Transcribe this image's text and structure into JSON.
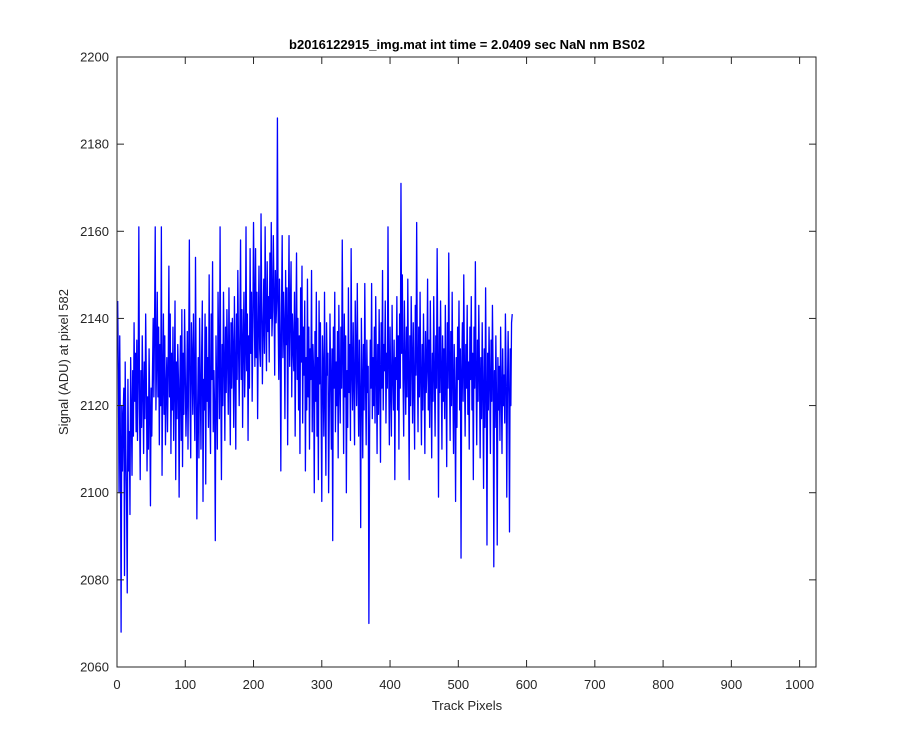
{
  "figure": {
    "title": "b2016122915_img.mat int time = 2.0409 sec  NaN nm BS02",
    "xlabel": "Track Pixels",
    "ylabel": "Signal (ADU) at pixel 582"
  },
  "colors": {
    "line": "#0000ff",
    "axes": "#262626",
    "background": "#ffffff"
  },
  "chart_data": {
    "type": "line",
    "title": "b2016122915_img.mat int time = 2.0409 sec  NaN nm BS02",
    "xlabel": "Track Pixels",
    "ylabel": "Signal (ADU) at pixel 582",
    "xlim": [
      0,
      1024
    ],
    "ylim": [
      2060,
      2200
    ],
    "xticks": [
      0,
      100,
      200,
      300,
      400,
      500,
      600,
      700,
      800,
      900,
      1000
    ],
    "yticks": [
      2060,
      2080,
      2100,
      2120,
      2140,
      2160,
      2180,
      2200
    ],
    "grid": false,
    "legend": "none",
    "series": [
      {
        "color": "#0000ff",
        "x_start": 1,
        "x_step": 1,
        "y": [
          2144,
          2128,
          2100,
          2136,
          2112,
          2068,
          2120,
          2105,
          2118,
          2124,
          2081,
          2130,
          2110,
          2098,
          2077,
          2126,
          2105,
          2114,
          2095,
          2131,
          2119,
          2104,
          2128,
          2113,
          2139,
          2121,
          2132,
          2114,
          2135,
          2112,
          2126,
          2161,
          2119,
          2103,
          2128,
          2115,
          2136,
          2124,
          2109,
          2130,
          2117,
          2141,
          2126,
          2105,
          2122,
          2110,
          2133,
          2119,
          2097,
          2124,
          2113,
          2128,
          2140,
          2122,
          2138,
          2161,
          2119,
          2130,
          2146,
          2122,
          2138,
          2111,
          2134,
          2120,
          2161,
          2104,
          2125,
          2141,
          2118,
          2136,
          2111,
          2124,
          2131,
          2114,
          2128,
          2152,
          2122,
          2141,
          2109,
          2132,
          2119,
          2138,
          2112,
          2126,
          2144,
          2103,
          2130,
          2117,
          2134,
          2126,
          2099,
          2124,
          2136,
          2112,
          2142,
          2106,
          2132,
          2118,
          2142,
          2128,
          2113,
          2122,
          2137,
          2110,
          2131,
          2158,
          2120,
          2108,
          2139,
          2131,
          2118,
          2141,
          2124,
          2112,
          2154,
          2126,
          2094,
          2118,
          2131,
          2108,
          2140,
          2125,
          2110,
          2132,
          2144,
          2098,
          2126,
          2119,
          2141,
          2102,
          2138,
          2121,
          2131,
          2115,
          2150,
          2120,
          2109,
          2141,
          2126,
          2153,
          2114,
          2128,
          2119,
          2089,
          2136,
          2124,
          2110,
          2146,
          2132,
          2117,
          2161,
          2125,
          2103,
          2134,
          2120,
          2146,
          2130,
          2112,
          2138,
          2123,
          2142,
          2131,
          2118,
          2147,
          2128,
          2111,
          2139,
          2124,
          2140,
          2133,
          2115,
          2145,
          2129,
          2110,
          2141,
          2126,
          2151,
          2134,
          2120,
          2137,
          2158,
          2126,
          2142,
          2115,
          2135,
          2146,
          2122,
          2132,
          2161,
          2128,
          2141,
          2112,
          2136,
          2124,
          2156,
          2132,
          2146,
          2121,
          2138,
          2162,
          2144,
          2129,
          2156,
          2131,
          2146,
          2117,
          2137,
          2152,
          2133,
          2129,
          2164,
          2143,
          2125,
          2138,
          2149,
          2132,
          2161,
          2141,
          2128,
          2153,
          2137,
          2145,
          2130,
          2155,
          2140,
          2162,
          2136,
          2142,
          2159,
          2146,
          2127,
          2151,
          2139,
          2144,
          2186,
          2141,
          2126,
          2149,
          2135,
          2105,
          2143,
          2159,
          2131,
          2146,
          2138,
          2117,
          2151,
          2134,
          2147,
          2111,
          2139,
          2159,
          2129,
          2142,
          2153,
          2122,
          2141,
          2134,
          2128,
          2146,
          2113,
          2137,
          2155,
          2126,
          2140,
          2119,
          2136,
          2109,
          2147,
          2130,
          2152,
          2116,
          2138,
          2127,
          2144,
          2105,
          2131,
          2119,
          2149,
          2122,
          2138,
          2110,
          2133,
          2126,
          2151,
          2114,
          2134,
          2128,
          2100,
          2137,
          2121,
          2146,
          2113,
          2131,
          2103,
          2144,
          2125,
          2139,
          2119,
          2098,
          2136,
          2128,
          2113,
          2146,
          2121,
          2104,
          2139,
          2127,
          2132,
          2100,
          2118,
          2141,
          2126,
          2110,
          2133,
          2089,
          2138,
          2124,
          2146,
          2114,
          2130,
          2120,
          2137,
          2108,
          2143,
          2126,
          2116,
          2138,
          2124,
          2158,
          2131,
          2109,
          2141,
          2122,
          2136,
          2100,
          2128,
          2115,
          2147,
          2123,
          2134,
          2112,
          2156,
          2128,
          2119,
          2139,
          2125,
          2111,
          2144,
          2132,
          2120,
          2148,
          2127,
          2113,
          2135,
          2121,
          2092,
          2140,
          2126,
          2108,
          2134,
          2119,
          2148,
          2126,
          2111,
          2135,
          2123,
          2129,
          2070,
          2112,
          2135,
          2124,
          2148,
          2117,
          2131,
          2120,
          2138,
          2116,
          2145,
          2129,
          2109,
          2134,
          2118,
          2142,
          2126,
          2107,
          2139,
          2124,
          2151,
          2119,
          2134,
          2128,
          2144,
          2116,
          2132,
          2124,
          2161,
          2129,
          2111,
          2138,
          2124,
          2113,
          2143,
          2127,
          2119,
          2135,
          2103,
          2131,
          2126,
          2145,
          2119,
          2136,
          2110,
          2141,
          2124,
          2171,
          2132,
          2150,
          2126,
          2113,
          2144,
          2130,
          2118,
          2138,
          2122,
          2149,
          2128,
          2103,
          2136,
          2120,
          2145,
          2131,
          2116,
          2139,
          2124,
          2110,
          2143,
          2127,
          2162,
          2130,
          2114,
          2138,
          2122,
          2146,
          2126,
          2111,
          2134,
          2119,
          2141,
          2127,
          2109,
          2137,
          2123,
          2129,
          2149,
          2119,
          2135,
          2115,
          2144,
          2126,
          2108,
          2132,
          2121,
          2145,
          2127,
          2113,
          2136,
          2124,
          2156,
          2130,
          2099,
          2138,
          2123,
          2144,
          2128,
          2110,
          2136,
          2121,
          2133,
          2117,
          2143,
          2125,
          2106,
          2139,
          2124,
          2155,
          2129,
          2112,
          2137,
          2120,
          2146,
          2125,
          2109,
          2134,
          2122,
          2098,
          2131,
          2115,
          2138,
          2126,
          2144,
          2119,
          2133,
          2085,
          2128,
          2139,
          2121,
          2150,
          2128,
          2113,
          2134,
          2124,
          2143,
          2118,
          2130,
          2110,
          2138,
          2126,
          2145,
          2119,
          2132,
          2103,
          2138,
          2124,
          2153,
          2127,
          2111,
          2135,
          2121,
          2143,
          2128,
          2108,
          2131,
          2117,
          2139,
          2124,
          2101,
          2133,
          2115,
          2147,
          2124,
          2088,
          2132,
          2119,
          2138,
          2126,
          2109,
          2135,
          2121,
          2143,
          2127,
          2083,
          2128,
          2115,
          2136,
          2121,
          2088,
          2131,
          2119,
          2129,
          2112,
          2138,
          2124,
          2109,
          2133,
          2120,
          2127,
          2116,
          2141,
          2128,
          2099,
          2124,
          2137,
          2122,
          2091,
          2133,
          2120,
          2139,
          2141
        ]
      }
    ]
  }
}
